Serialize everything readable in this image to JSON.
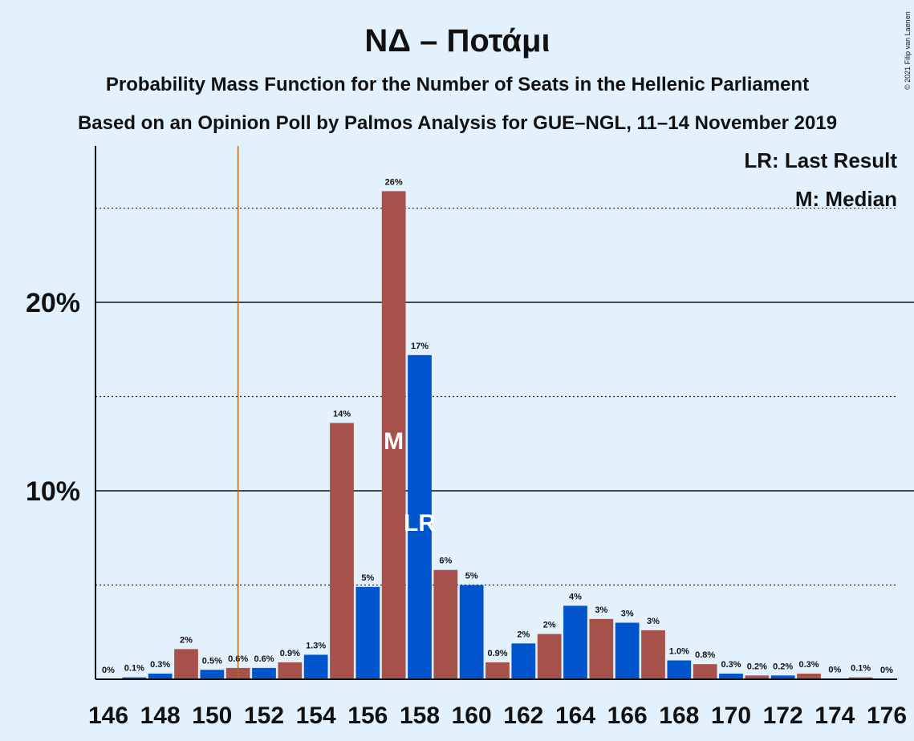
{
  "chart_data": {
    "type": "bar",
    "title": "ΝΔ – Ποτάμι",
    "subtitle": "Probability Mass Function for the Number of Seats in the Hellenic Parliament",
    "subtitle2": "Based on an Opinion Poll by Palmos Analysis for GUE–NGL, 11–14 November 2019",
    "copyright": "© 2021 Filip van Laenen",
    "legend_lines": [
      "LR: Last Result",
      "M: Median"
    ],
    "x": [
      146,
      147,
      148,
      149,
      150,
      151,
      152,
      153,
      154,
      155,
      156,
      157,
      158,
      159,
      160,
      161,
      162,
      163,
      164,
      165,
      166,
      167,
      168,
      169,
      170,
      171,
      172,
      173,
      174,
      175,
      176
    ],
    "values": [
      0.01,
      0.1,
      0.3,
      1.6,
      0.5,
      0.6,
      0.6,
      0.9,
      1.3,
      13.6,
      4.9,
      25.9,
      17.2,
      5.8,
      5.0,
      0.9,
      1.9,
      2.4,
      3.9,
      3.2,
      3.0,
      2.6,
      1.0,
      0.8,
      0.3,
      0.2,
      0.2,
      0.3,
      0.02,
      0.1,
      0.01
    ],
    "value_labels": [
      "0%",
      "0.1%",
      "0.3%",
      "2%",
      "0.5%",
      "0.6%",
      "0.6%",
      "0.9%",
      "1.3%",
      "14%",
      "5%",
      "26%",
      "17%",
      "6%",
      "5%",
      "0.9%",
      "2%",
      "2%",
      "4%",
      "3%",
      "3%",
      "3%",
      "1.0%",
      "0.8%",
      "0.3%",
      "0.2%",
      "0.2%",
      "0.3%",
      "0%",
      "0.1%",
      "0%"
    ],
    "colors": [
      "#0055cc",
      "#0055cc",
      "#0055cc",
      "#a6514a",
      "#0055cc",
      "#a6514a",
      "#0055cc",
      "#a6514a",
      "#0055cc",
      "#a6514a",
      "#0055cc",
      "#a6514a",
      "#0055cc",
      "#a6514a",
      "#0055cc",
      "#a6514a",
      "#0055cc",
      "#a6514a",
      "#0055cc",
      "#a6514a",
      "#0055cc",
      "#a6514a",
      "#0055cc",
      "#a6514a",
      "#0055cc",
      "#a6514a",
      "#0055cc",
      "#a6514a",
      "#0055cc",
      "#a6514a",
      "#0055cc"
    ],
    "xlim": [
      145.5,
      176.5
    ],
    "xticks": [
      146,
      148,
      150,
      152,
      154,
      156,
      158,
      160,
      162,
      164,
      166,
      168,
      170,
      172,
      174,
      176
    ],
    "ylim": [
      0,
      28.3
    ],
    "yticks": [
      {
        "value": 10,
        "label": "10%"
      },
      {
        "value": 20,
        "label": "20%"
      }
    ],
    "minor_yticks": [
      5,
      15,
      25
    ],
    "majority_line": 151,
    "median": {
      "x": 157,
      "label": "M"
    },
    "last_result": {
      "x": 158,
      "label": "LR"
    }
  }
}
